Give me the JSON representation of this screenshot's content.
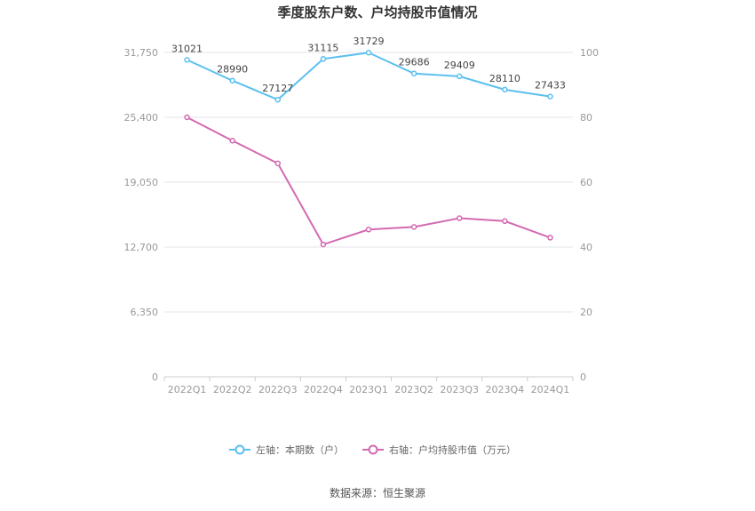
{
  "chart_data": {
    "type": "line",
    "title": "季度股东户数、户均持股市值情况",
    "categories": [
      "2022Q1",
      "2022Q2",
      "2022Q3",
      "2022Q4",
      "2023Q1",
      "2023Q2",
      "2023Q3",
      "2023Q4",
      "2024Q1"
    ],
    "left_axis": {
      "ticks": [
        "0",
        "6,350",
        "12,700",
        "19,050",
        "25,400",
        "31,750"
      ],
      "ylim": [
        0,
        31750
      ]
    },
    "right_axis": {
      "ticks": [
        "0",
        "20",
        "40",
        "60",
        "80",
        "100"
      ],
      "ylim": [
        0,
        100
      ]
    },
    "series": [
      {
        "name": "左轴：本期数（户）",
        "axis": "left",
        "color": "#5bc0f0",
        "values": [
          31021,
          28990,
          27127,
          31115,
          31729,
          29686,
          29409,
          28110,
          27433
        ],
        "labels": [
          "31021",
          "28990",
          "27127",
          "31115",
          "31729",
          "29686",
          "29409",
          "28110",
          "27433"
        ]
      },
      {
        "name": "右轴：户均持股市值（万元）",
        "axis": "right",
        "color": "#d36ab1",
        "values": [
          80.0,
          72.8,
          65.8,
          40.8,
          45.4,
          46.2,
          48.9,
          48.0,
          42.9
        ]
      }
    ],
    "grid": true,
    "legend_position": "bottom"
  },
  "source": "数据来源：恒生聚源"
}
